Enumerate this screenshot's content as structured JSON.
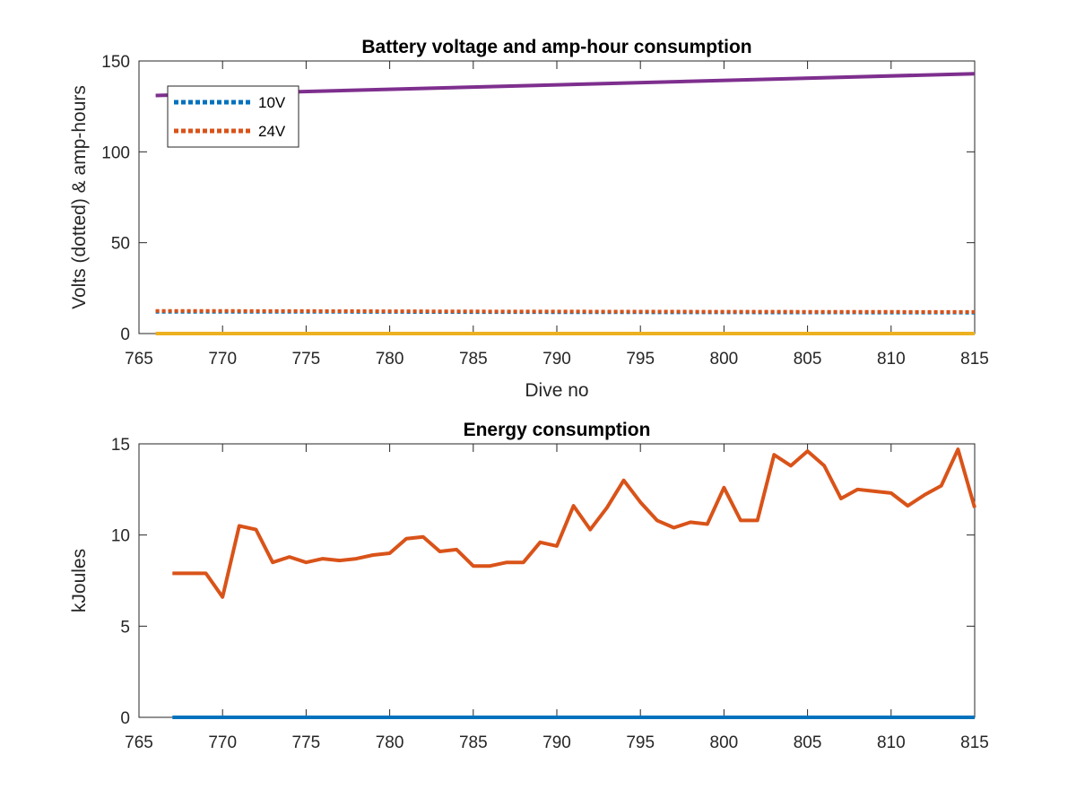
{
  "chart_data": [
    {
      "type": "line",
      "title": "Battery voltage and amp-hour consumption",
      "xlabel": "Dive no",
      "ylabel": "Volts (dotted) & amp-hours",
      "xlim": [
        765,
        815
      ],
      "ylim": [
        0,
        150
      ],
      "xticks": [
        "765",
        "770",
        "775",
        "780",
        "785",
        "790",
        "795",
        "800",
        "805",
        "810",
        "815"
      ],
      "yticks": [
        "0",
        "50",
        "100",
        "150"
      ],
      "grid": false,
      "legend": {
        "placement": "top-left",
        "entries": [
          "10V",
          "24V"
        ]
      },
      "series": [
        {
          "name": "10V",
          "style": "dotted",
          "color": "#0072bd",
          "x": [
            766,
            775,
            785,
            795,
            805,
            815
          ],
          "y": [
            12,
            12,
            11.8,
            11.7,
            11.6,
            11.5
          ]
        },
        {
          "name": "24V",
          "style": "dotted",
          "color": "#d95319",
          "x": [
            766,
            775,
            785,
            795,
            805,
            815
          ],
          "y": [
            12.5,
            12.4,
            12.2,
            12.1,
            12.0,
            11.9
          ]
        },
        {
          "style": "solid",
          "color": "#7e2f8e",
          "x": [
            766,
            815
          ],
          "y": [
            131,
            143
          ]
        },
        {
          "style": "solid",
          "color": "#edb120",
          "x": [
            766,
            815
          ],
          "y": [
            0,
            0
          ]
        }
      ]
    },
    {
      "type": "line",
      "title": "Energy consumption",
      "xlabel": "",
      "ylabel": "kJoules",
      "xlim": [
        765,
        815
      ],
      "ylim": [
        0,
        15
      ],
      "xticks": [
        "765",
        "770",
        "775",
        "780",
        "785",
        "790",
        "795",
        "800",
        "805",
        "810",
        "815"
      ],
      "yticks": [
        "0",
        "5",
        "10",
        "15"
      ],
      "grid": false,
      "series": [
        {
          "style": "solid",
          "color": "#d95319",
          "x": [
            767,
            768,
            769,
            770,
            771,
            772,
            773,
            774,
            775,
            776,
            777,
            778,
            779,
            780,
            781,
            782,
            783,
            784,
            785,
            786,
            787,
            788,
            789,
            790,
            791,
            792,
            793,
            794,
            795,
            796,
            797,
            798,
            799,
            800,
            801,
            802,
            803,
            804,
            805,
            806,
            807,
            808,
            809,
            810,
            811,
            812,
            813,
            814,
            815
          ],
          "y": [
            7.9,
            7.9,
            7.9,
            6.6,
            10.5,
            10.3,
            8.5,
            8.8,
            8.5,
            8.7,
            8.6,
            8.7,
            8.9,
            9.0,
            9.8,
            9.9,
            9.1,
            9.2,
            8.3,
            8.3,
            8.5,
            8.5,
            9.6,
            9.4,
            11.6,
            10.3,
            11.5,
            13.0,
            11.8,
            10.8,
            10.4,
            10.7,
            10.6,
            12.6,
            10.8,
            10.8,
            14.4,
            13.8,
            14.6,
            13.8,
            12.0,
            12.5,
            12.4,
            12.3,
            11.6,
            12.2,
            12.7,
            14.7,
            11.5
          ]
        },
        {
          "style": "solid",
          "color": "#0072bd",
          "x": [
            767,
            815
          ],
          "y": [
            0,
            0
          ]
        }
      ]
    }
  ]
}
